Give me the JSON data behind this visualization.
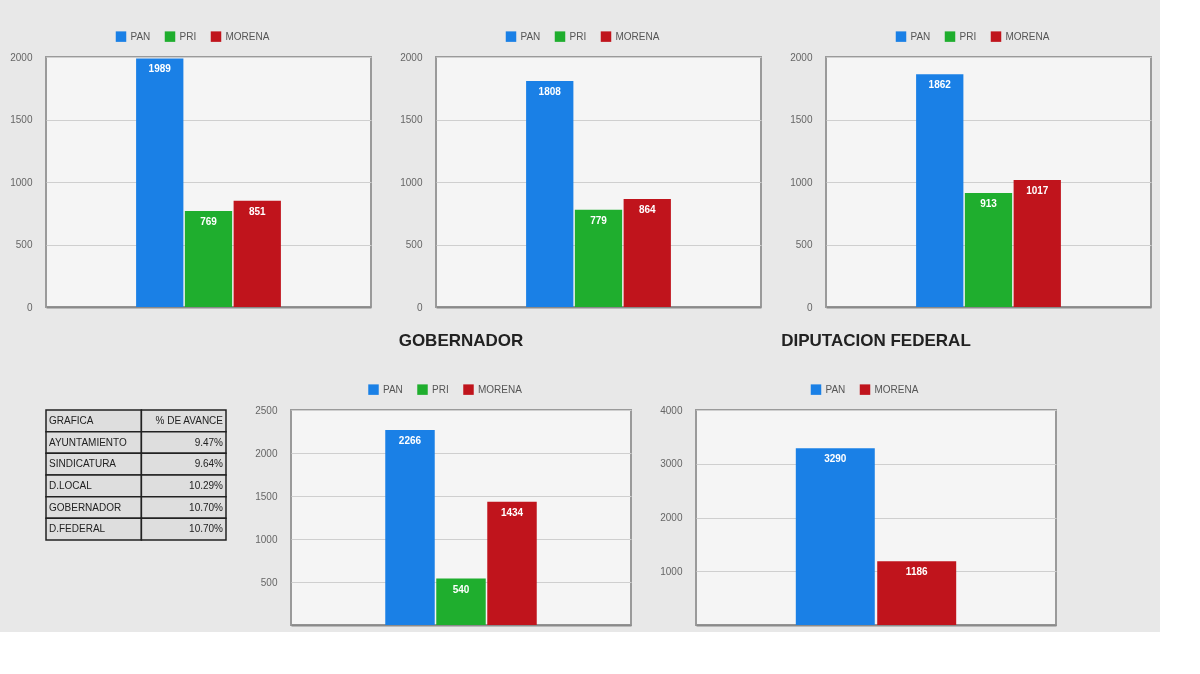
{
  "chart_data": [
    {
      "type": "bar",
      "categories": [
        null
      ],
      "series": [
        {
          "name": "PAN",
          "color": "#1a80e6",
          "values": [
            1989
          ]
        },
        {
          "name": "PRI",
          "color": "#1fae2e",
          "values": [
            769
          ]
        },
        {
          "name": "MORENA",
          "color": "#c0141c",
          "values": [
            851
          ]
        }
      ],
      "ylim": [
        0,
        2000
      ],
      "yticks": [
        0,
        500,
        1000,
        1500,
        2000
      ],
      "grid": "y",
      "legend": "top",
      "data_labels": true,
      "tick_labels": "y"
    },
    {
      "type": "bar",
      "categories": [
        null
      ],
      "series": [
        {
          "name": "PAN",
          "color": "#1a80e6",
          "values": [
            1808
          ]
        },
        {
          "name": "PRI",
          "color": "#1fae2e",
          "values": [
            779
          ]
        },
        {
          "name": "MORENA",
          "color": "#c0141c",
          "values": [
            864
          ]
        }
      ],
      "ylim": [
        0,
        2000
      ],
      "yticks": [
        0,
        500,
        1000,
        1500,
        2000
      ],
      "grid": "y",
      "legend": "top",
      "data_labels": true,
      "tick_labels": "y"
    },
    {
      "type": "bar",
      "categories": [
        null
      ],
      "series": [
        {
          "name": "PAN",
          "color": "#1a80e6",
          "values": [
            1862
          ]
        },
        {
          "name": "PRI",
          "color": "#1fae2e",
          "values": [
            913
          ]
        },
        {
          "name": "MORENA",
          "color": "#c0141c",
          "values": [
            1017
          ]
        }
      ],
      "ylim": [
        0,
        2000
      ],
      "yticks": [
        0,
        500,
        1000,
        1500,
        2000
      ],
      "grid": "y",
      "legend": "top",
      "data_labels": true,
      "tick_labels": "y"
    },
    {
      "type": "other",
      "annotations": [
        "GRAFICA",
        "% DE AVANCE",
        "AYUNTAMIENTO",
        "9.47%",
        "SINDICATURA",
        "9.64%",
        "D.LOCAL",
        "10.29%",
        "GOBERNADOR",
        "10.70%",
        "D.FEDERAL",
        "10.70%"
      ]
    },
    {
      "type": "bar",
      "title": "GOBERNADOR",
      "categories": [
        null
      ],
      "series": [
        {
          "name": "PAN",
          "color": "#1a80e6",
          "values": [
            2266
          ]
        },
        {
          "name": "PRI",
          "color": "#1fae2e",
          "values": [
            540
          ]
        },
        {
          "name": "MORENA",
          "color": "#c0141c",
          "values": [
            1434
          ]
        }
      ],
      "ylim": [
        0,
        2500
      ],
      "yticks": [
        500,
        1000,
        1500,
        2000,
        2500
      ],
      "grid": "y",
      "legend": "top",
      "data_labels": true,
      "tick_labels": "y"
    },
    {
      "type": "bar",
      "title": "DIPUTACION FEDERAL",
      "categories": [
        null
      ],
      "series": [
        {
          "name": "PAN",
          "color": "#1a80e6",
          "values": [
            3290
          ]
        },
        {
          "name": "MORENA",
          "color": "#c0141c",
          "values": [
            1186
          ]
        }
      ],
      "ylim": [
        0,
        4000
      ],
      "yticks": [
        1000,
        2000,
        3000,
        4000
      ],
      "grid": "y",
      "legend": "top",
      "data_labels": true,
      "tick_labels": "y"
    }
  ]
}
